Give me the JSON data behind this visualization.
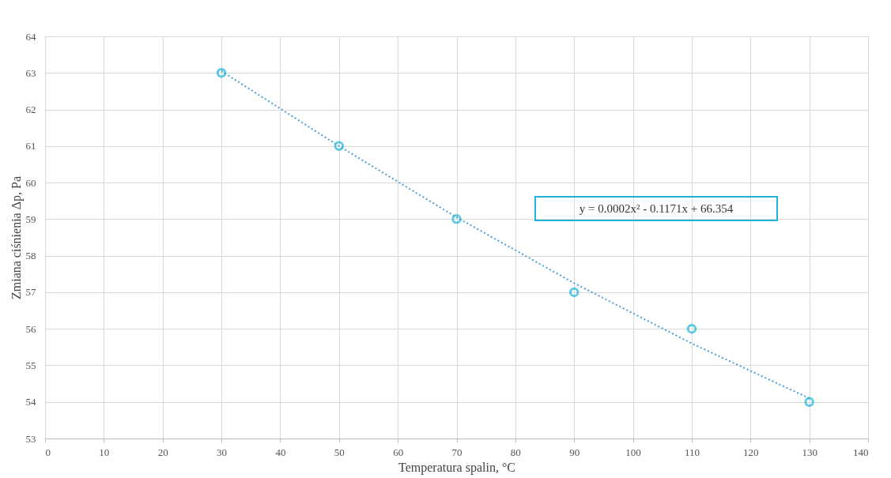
{
  "chart_data": {
    "type": "scatter",
    "xlabel": "Temperatura spalin, °C",
    "ylabel": "Zmiana ciśnienia Δp, Pa",
    "x": [
      30,
      50,
      70,
      90,
      110,
      130
    ],
    "series": [
      {
        "color": "#1fb4d8",
        "marker": "circle",
        "values": [
          63,
          61,
          59,
          57,
          56,
          54
        ]
      },
      {
        "type": "line",
        "color": "#4a9fd8",
        "line_style": "dotted",
        "marker": "none",
        "x": [
          30,
          50,
          70,
          90,
          110,
          130
        ],
        "values": [
          63.05,
          61.0,
          59.05,
          57.25,
          55.6,
          54.1
        ]
      }
    ],
    "annotations": [
      "y = 0.0002x² - 0.1171x + 66.354"
    ],
    "xlim": [
      0,
      140
    ],
    "xticks": [
      0,
      10,
      20,
      30,
      40,
      50,
      60,
      70,
      80,
      90,
      100,
      110,
      120,
      130,
      140
    ],
    "ylim": [
      53,
      64
    ],
    "yticks": [
      53,
      54,
      55,
      56,
      57,
      58,
      59,
      60,
      61,
      62,
      63,
      64
    ],
    "grid": true
  }
}
